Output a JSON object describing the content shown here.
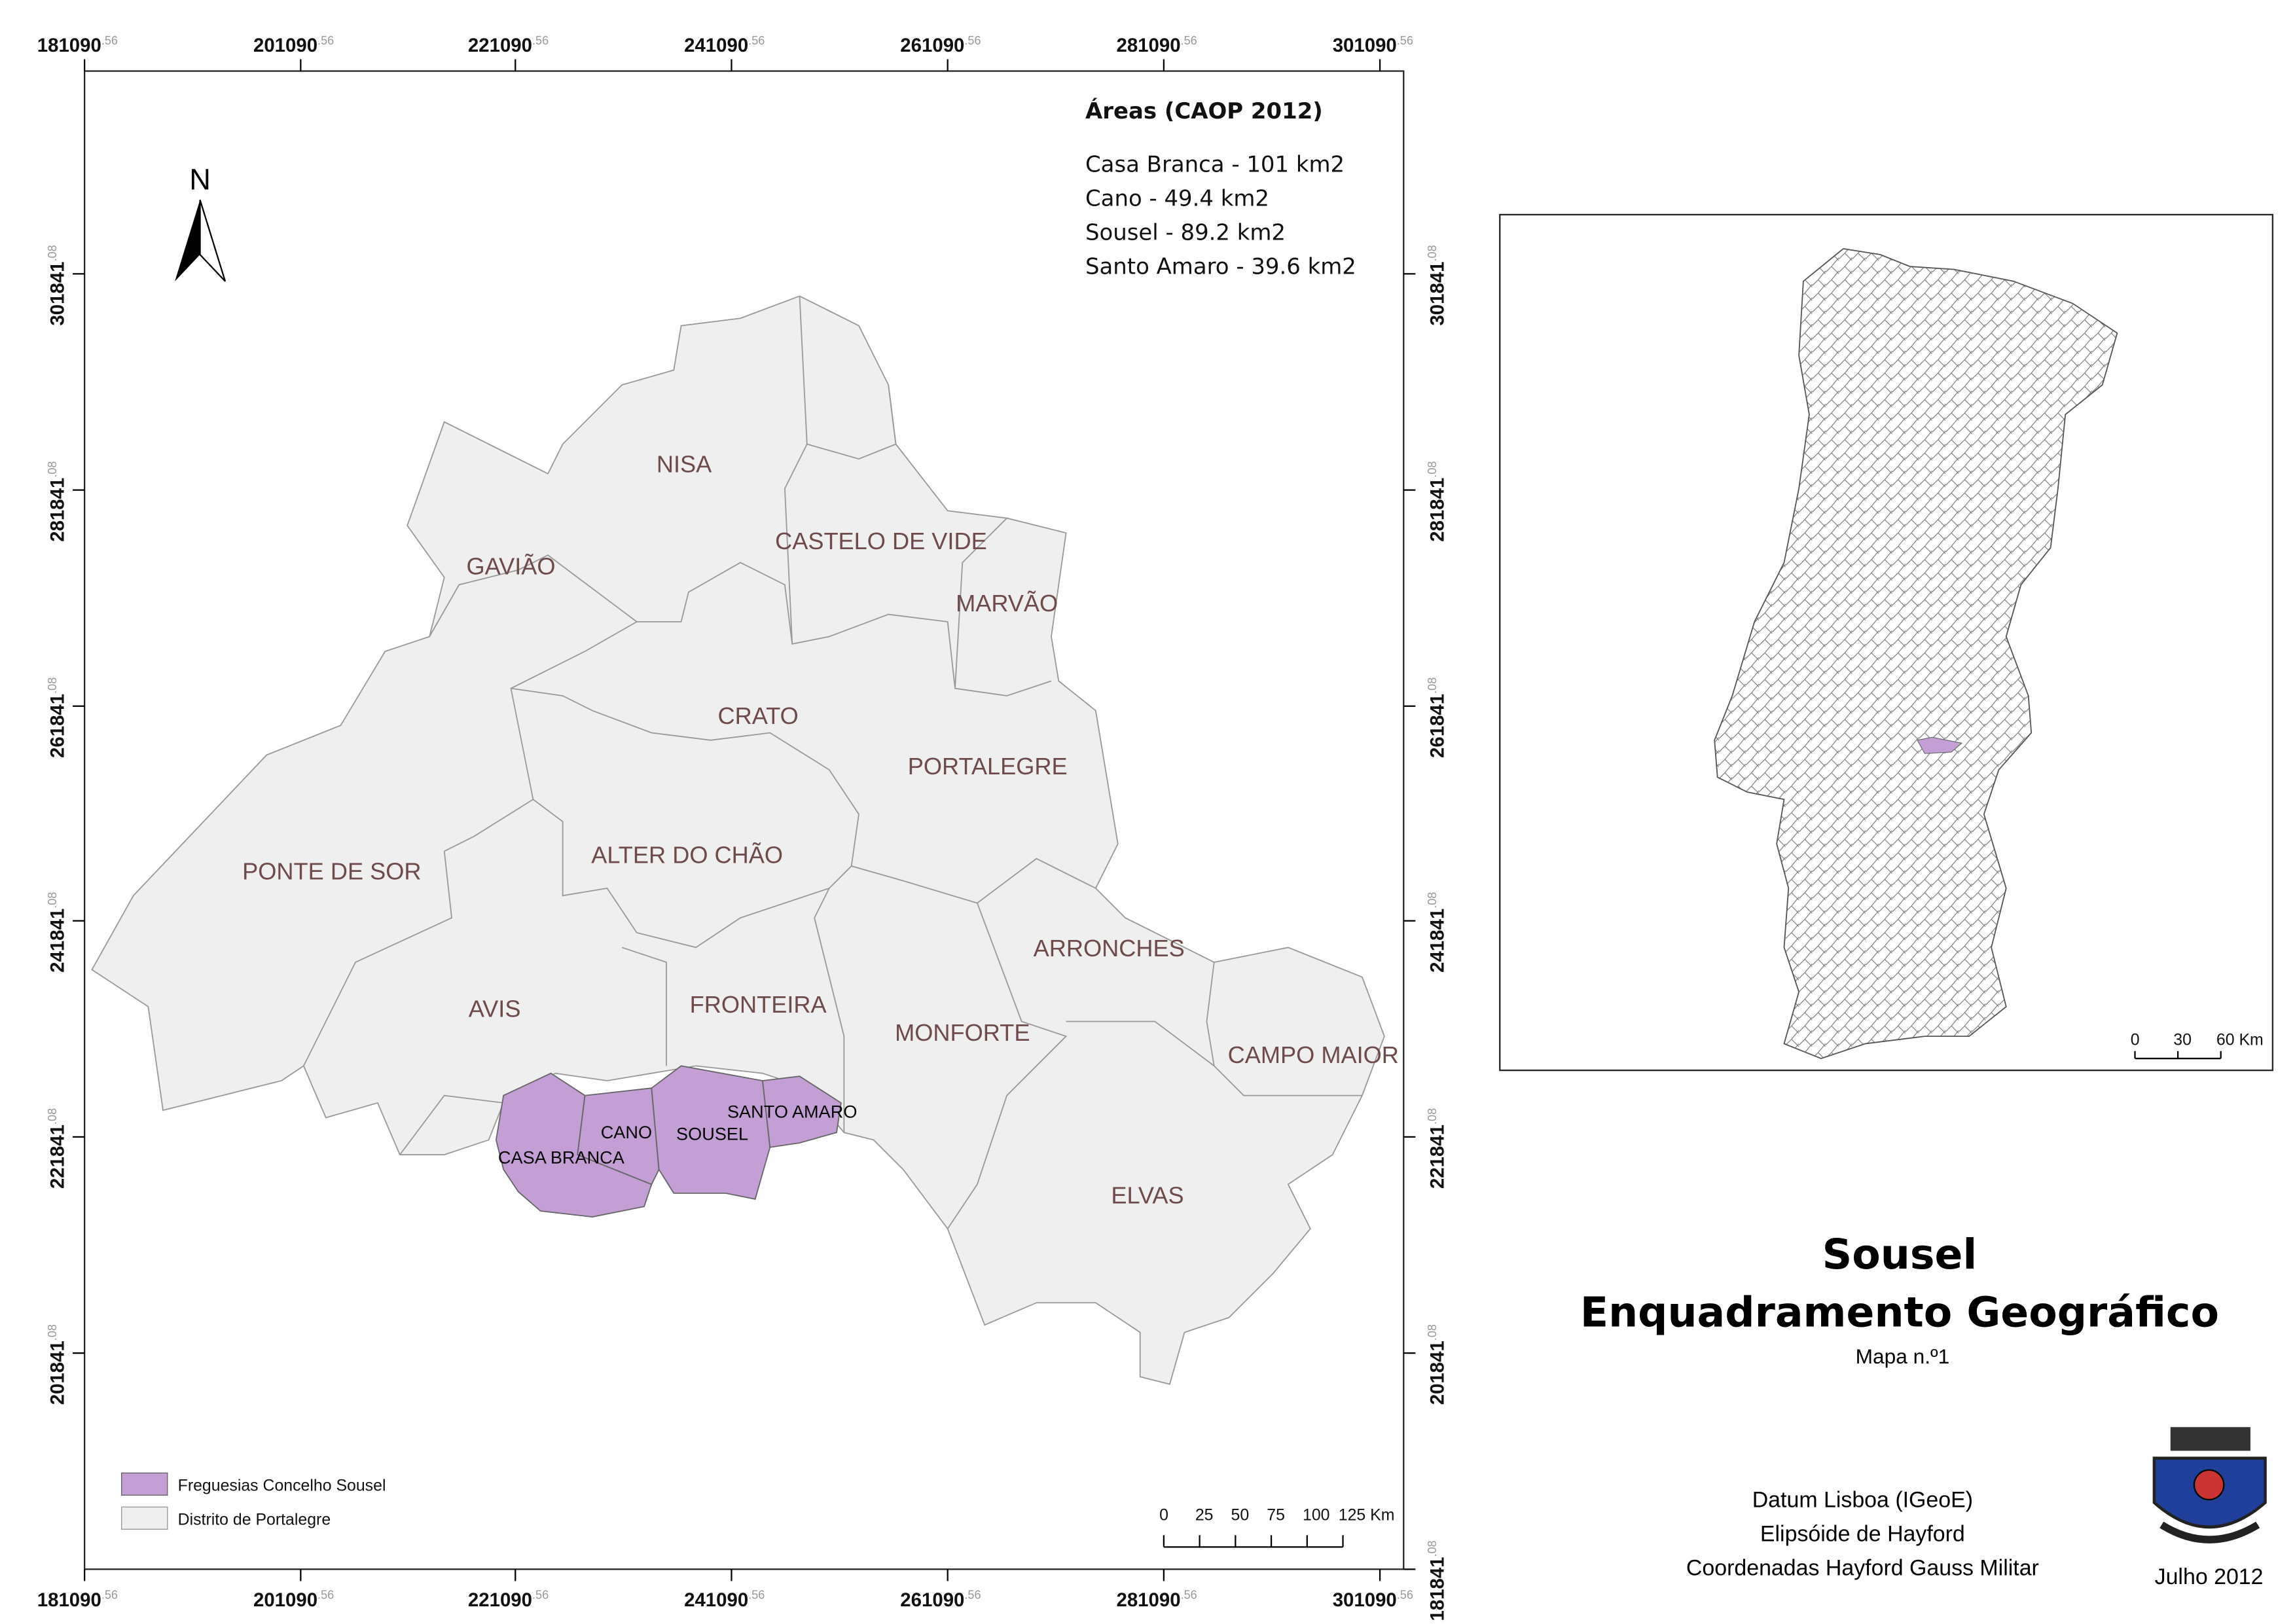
{
  "map": {
    "x_ticks": [
      {
        "main": "181090",
        "frac": ".56"
      },
      {
        "main": "201090",
        "frac": ".56"
      },
      {
        "main": "221090",
        "frac": ".56"
      },
      {
        "main": "241090",
        "frac": ".56"
      },
      {
        "main": "261090",
        "frac": ".56"
      },
      {
        "main": "281090",
        "frac": ".56"
      },
      {
        "main": "301090",
        "frac": ".56"
      }
    ],
    "y_ticks": [
      {
        "main": "301841",
        "frac": ".08"
      },
      {
        "main": "281841",
        "frac": ".08"
      },
      {
        "main": "261841",
        "frac": ".08"
      },
      {
        "main": "241841",
        "frac": ".08"
      },
      {
        "main": "221841",
        "frac": ".08"
      },
      {
        "main": "201841",
        "frac": ".08"
      },
      {
        "main": "181841",
        "frac": ".08"
      }
    ],
    "north": "N",
    "areas": {
      "title": "Áreas (CAOP 2012)",
      "lines": [
        "Casa Branca - 101 km2",
        "Cano - 49.4 km2",
        "Sousel - 89.2 km2",
        "Santo Amaro - 39.6 km2"
      ]
    },
    "municipalities": [
      "NISA",
      "GAVIÃO",
      "CASTELO DE VIDE",
      "MARVÃO",
      "CRATO",
      "PORTALEGRE",
      "PONTE DE SOR",
      "ALTER DO CHÃO",
      "ARRONCHES",
      "AVIS",
      "FRONTEIRA",
      "MONFORTE",
      "CAMPO MAIOR",
      "ELVAS"
    ],
    "parishes": [
      "CANO",
      "SANTO AMARO",
      "SOUSEL",
      "CASA BRANCA"
    ],
    "legend": [
      "Freguesias Concelho Sousel",
      "Distrito de Portalegre"
    ],
    "scale": [
      "0",
      "25",
      "50",
      "75",
      "100",
      "125 Km"
    ]
  },
  "inset": {
    "scale": [
      "0",
      "30",
      "60 Km"
    ]
  },
  "title": "Sousel",
  "subtitle": "Enquadramento Geográfico",
  "map_number": "Mapa n.º1",
  "datum": [
    "Datum Lisboa (IGeoE)",
    "Elipsóide de Hayford",
    "Coordenadas Hayford Gauss Militar"
  ],
  "date": "Julho 2012"
}
